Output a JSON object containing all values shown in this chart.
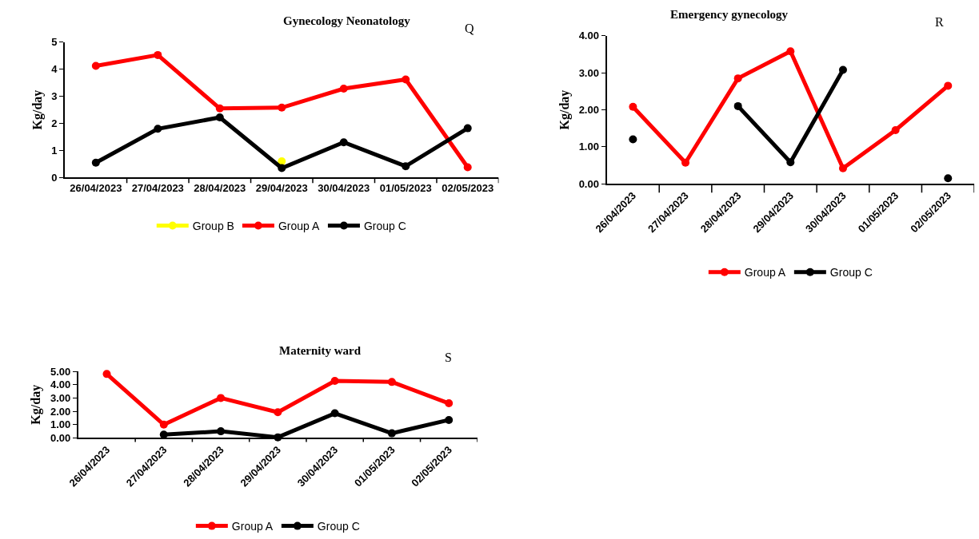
{
  "chart_data": [
    {
      "type": "line",
      "title": "Gynecology Neonatology",
      "ylabel": "Kg/day",
      "annotations": [
        "Q"
      ],
      "categories": [
        "26/04/2023",
        "27/04/2023",
        "28/04/2023",
        "29/04/2023",
        "30/04/2023",
        "01/05/2023",
        "02/05/2023"
      ],
      "series": [
        {
          "name": "Group B",
          "color": "#ffff00",
          "values": [
            null,
            null,
            null,
            0.6,
            null,
            null,
            null
          ]
        },
        {
          "name": "Group A",
          "color": "#ff0000",
          "values": [
            4.12,
            4.52,
            2.55,
            2.58,
            3.28,
            3.62,
            0.38
          ]
        },
        {
          "name": "Group C",
          "color": "#000000",
          "values": [
            0.55,
            1.8,
            2.22,
            0.35,
            1.3,
            0.42,
            1.82
          ]
        }
      ],
      "ylim": [
        0,
        5
      ],
      "yticks": [
        0,
        1,
        2,
        3,
        4,
        5
      ],
      "grid": false,
      "legend": "bottom",
      "marker": "circle",
      "line_style": "solid"
    },
    {
      "type": "line",
      "title": "Emergency gynecology",
      "ylabel": "Kg/day",
      "annotations": [
        "R"
      ],
      "categories": [
        "26/04/2023",
        "27/04/2023",
        "28/04/2023",
        "29/04/2023",
        "30/04/2023",
        "01/05/2023",
        "02/05/2023"
      ],
      "series": [
        {
          "name": "Group A",
          "color": "#ff0000",
          "values": [
            2.08,
            0.57,
            2.85,
            3.58,
            0.42,
            1.45,
            2.65
          ]
        },
        {
          "name": "Group C",
          "color": "#000000",
          "values": [
            1.2,
            null,
            2.1,
            0.58,
            3.08,
            null,
            0.15
          ]
        }
      ],
      "ylim": [
        0,
        4
      ],
      "yticks": [
        {
          "value": 0,
          "label": "0.00"
        },
        {
          "value": 1,
          "label": "1.00"
        },
        {
          "value": 2,
          "label": "2.00"
        },
        {
          "value": 3,
          "label": "3.00"
        },
        {
          "value": 4,
          "label": "4.00"
        }
      ],
      "grid": false,
      "legend": "bottom",
      "marker": "circle",
      "line_style": "solid"
    },
    {
      "type": "line",
      "title": "Maternity ward",
      "ylabel": "Kg/day",
      "annotations": [
        "S"
      ],
      "categories": [
        "26/04/2023",
        "27/04/2023",
        "28/04/2023",
        "29/04/2023",
        "30/04/2023",
        "01/05/2023",
        "02/05/2023"
      ],
      "series": [
        {
          "name": "Group A",
          "color": "#ff0000",
          "values": [
            4.8,
            1.0,
            3.0,
            1.93,
            4.28,
            4.2,
            2.6
          ]
        },
        {
          "name": "Group C",
          "color": "#000000",
          "values": [
            null,
            0.25,
            0.5,
            0.05,
            1.85,
            0.35,
            1.35
          ]
        }
      ],
      "ylim": [
        0,
        5
      ],
      "yticks": [
        {
          "value": 0,
          "label": "0.00"
        },
        {
          "value": 1,
          "label": "1.00"
        },
        {
          "value": 2,
          "label": "2.00"
        },
        {
          "value": 3,
          "label": "3.00"
        },
        {
          "value": 4,
          "label": "4.00"
        },
        {
          "value": 5,
          "label": "5.00"
        }
      ],
      "grid": false,
      "legend": "bottom",
      "marker": "circle",
      "line_style": "solid"
    }
  ]
}
